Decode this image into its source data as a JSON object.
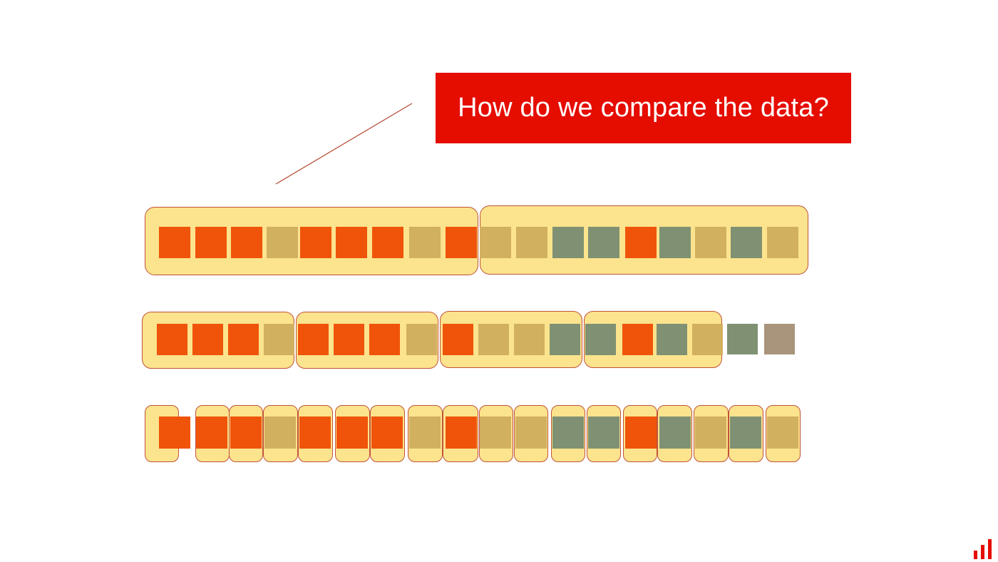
{
  "callout": {
    "text": "How do we compare the data?"
  },
  "colors": {
    "orange": "#f0540a",
    "tan": "#d1b060",
    "green": "#7f9172",
    "grey": "#a9957b",
    "group_fill": "#fce38d",
    "group_border": "#c0533a",
    "callout_bg": "#e50c00",
    "pointer_line": "#b5462e"
  },
  "sequence": [
    "orange",
    "orange",
    "orange",
    "tan",
    "orange",
    "orange",
    "orange",
    "tan",
    "orange",
    "tan",
    "tan",
    "green",
    "green",
    "orange",
    "green",
    "tan",
    "green",
    "tan"
  ],
  "rows": [
    {
      "name": "two-blocks",
      "groupings": [
        9,
        9
      ],
      "trailing": []
    },
    {
      "name": "four-blocks",
      "groupings": [
        4,
        4,
        4,
        4
      ],
      "trailing": [
        "green",
        "grey"
      ]
    },
    {
      "name": "single-cells",
      "groupings": [
        1,
        1,
        1,
        1,
        1,
        1,
        1,
        1,
        1,
        1,
        1,
        1,
        1,
        1,
        1,
        1,
        1,
        1
      ],
      "trailing": []
    }
  ],
  "logo": {
    "icon": "bar-chart-logo-icon"
  }
}
